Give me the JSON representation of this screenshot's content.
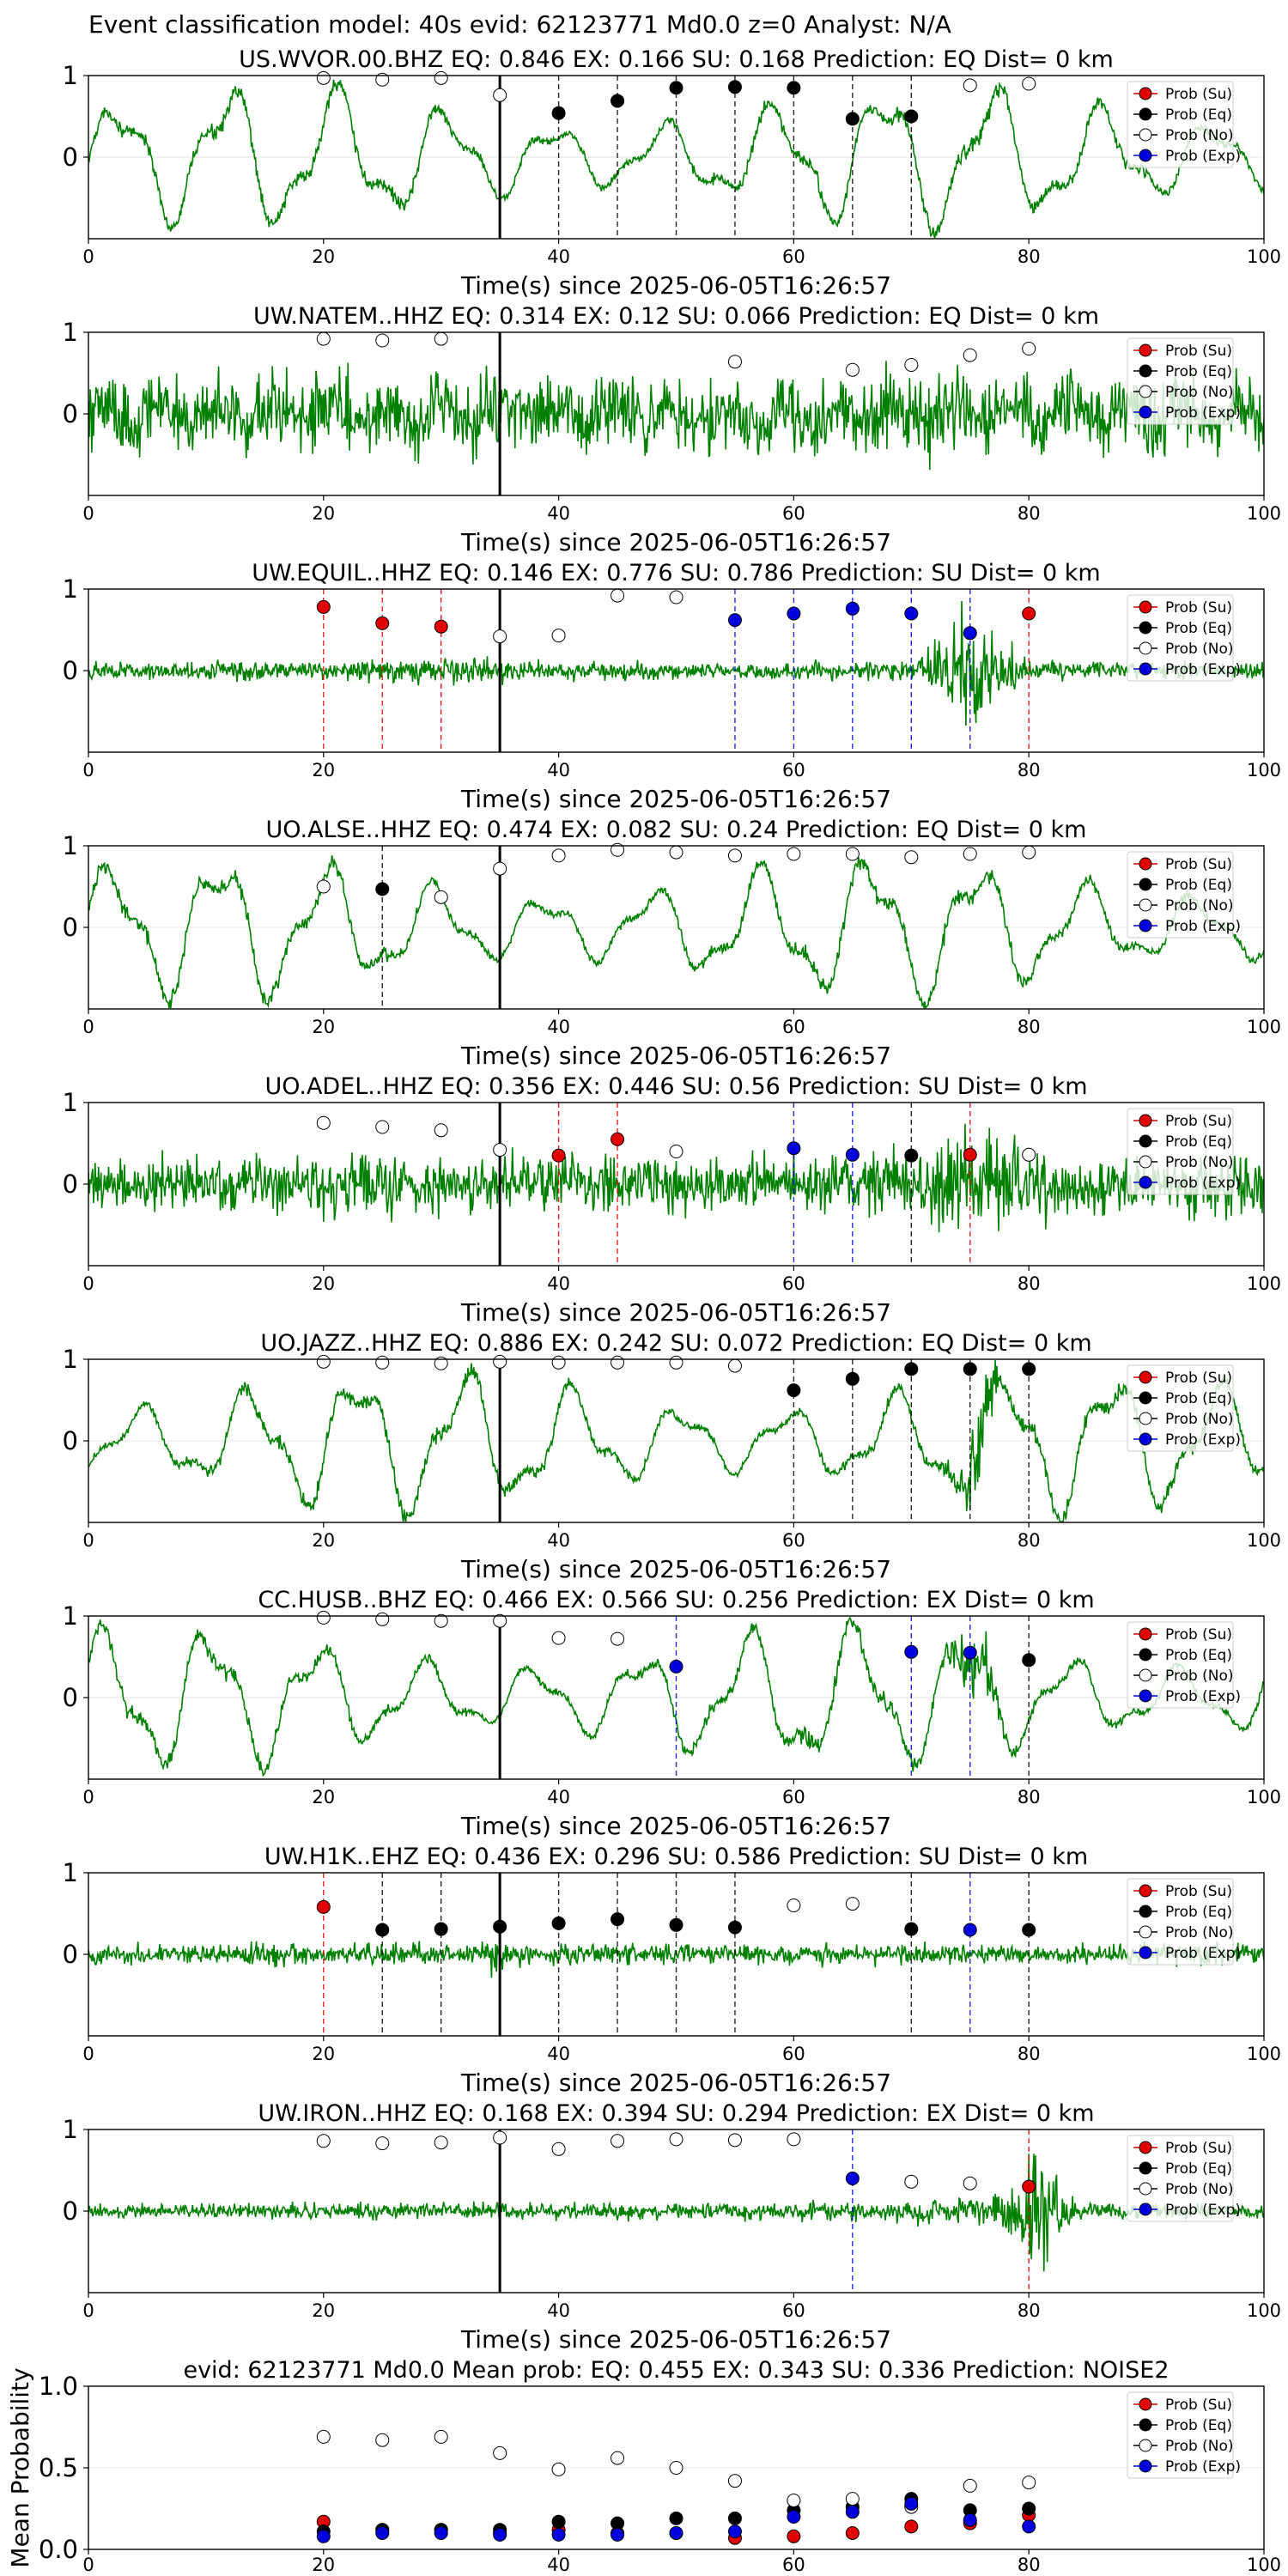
{
  "figure_title": "Event classification model: 40s evid: 62123771 Md0.0 z=0 Analyst: N/A",
  "colors": {
    "trace": "#008000",
    "su": "#e00000",
    "eq": "#000000",
    "no": "#ffffff",
    "exp": "#0000dd"
  },
  "chart_data": [
    {
      "type": "scatter",
      "title": "US.WVOR.00.BHZ   EQ: 0.846  EX: 0.166  SU: 0.168   Prediction: EQ    Dist= 0 km",
      "xlabel": "Time(s) since 2025-06-05T16:26:57",
      "xlim": [
        0,
        100
      ],
      "xticks": [
        "0",
        "20",
        "40",
        "60",
        "80",
        "100"
      ],
      "yticks": [
        "1",
        "0"
      ],
      "trace": "waveform",
      "trace_style": "smooth",
      "pick_time": 35,
      "points": [
        {
          "x": 20,
          "y": 0.97,
          "cls": "no"
        },
        {
          "x": 25,
          "y": 0.95,
          "cls": "no"
        },
        {
          "x": 30,
          "y": 0.97,
          "cls": "no"
        },
        {
          "x": 35,
          "y": 0.76,
          "cls": "no"
        },
        {
          "x": 40,
          "y": 0.54,
          "cls": "eq"
        },
        {
          "x": 45,
          "y": 0.69,
          "cls": "eq"
        },
        {
          "x": 50,
          "y": 0.85,
          "cls": "eq"
        },
        {
          "x": 55,
          "y": 0.86,
          "cls": "eq"
        },
        {
          "x": 60,
          "y": 0.85,
          "cls": "eq"
        },
        {
          "x": 65,
          "y": 0.47,
          "cls": "eq"
        },
        {
          "x": 70,
          "y": 0.5,
          "cls": "eq"
        },
        {
          "x": 75,
          "y": 0.88,
          "cls": "no"
        },
        {
          "x": 80,
          "y": 0.9,
          "cls": "no"
        }
      ],
      "vlines": [
        {
          "x": 40,
          "cls": "eq"
        },
        {
          "x": 45,
          "cls": "eq"
        },
        {
          "x": 50,
          "cls": "eq"
        },
        {
          "x": 55,
          "cls": "eq"
        },
        {
          "x": 60,
          "cls": "eq"
        },
        {
          "x": 65,
          "cls": "eq"
        },
        {
          "x": 70,
          "cls": "eq"
        }
      ],
      "legend": [
        "Prob (Su)",
        "Prob (Eq)",
        "Prob (No)",
        "Prob (Exp)"
      ]
    },
    {
      "type": "scatter",
      "title": "UW.NATEM..HHZ   EQ: 0.314  EX: 0.12  SU: 0.066   Prediction: EQ    Dist= 0 km",
      "xlabel": "Time(s) since 2025-06-05T16:26:57",
      "xlim": [
        0,
        100
      ],
      "xticks": [
        "0",
        "20",
        "40",
        "60",
        "80",
        "100"
      ],
      "yticks": [
        "1",
        "0"
      ],
      "trace": "waveform",
      "trace_style": "noise",
      "pick_time": 35,
      "points": [
        {
          "x": 20,
          "y": 0.92,
          "cls": "no"
        },
        {
          "x": 25,
          "y": 0.9,
          "cls": "no"
        },
        {
          "x": 30,
          "y": 0.92,
          "cls": "no"
        },
        {
          "x": 55,
          "y": 0.64,
          "cls": "no"
        },
        {
          "x": 65,
          "y": 0.54,
          "cls": "no"
        },
        {
          "x": 70,
          "y": 0.6,
          "cls": "no"
        },
        {
          "x": 75,
          "y": 0.72,
          "cls": "no"
        },
        {
          "x": 80,
          "y": 0.8,
          "cls": "no"
        }
      ],
      "vlines": [],
      "legend": [
        "Prob (Su)",
        "Prob (Eq)",
        "Prob (No)",
        "Prob (Exp)"
      ]
    },
    {
      "type": "scatter",
      "title": "UW.EQUIL..HHZ   EQ: 0.146  EX: 0.776  SU: 0.786   Prediction: SU    Dist= 0 km",
      "xlabel": "Time(s) since 2025-06-05T16:26:57",
      "xlim": [
        0,
        100
      ],
      "xticks": [
        "0",
        "20",
        "40",
        "60",
        "80",
        "100"
      ],
      "yticks": [
        "1",
        "0"
      ],
      "trace": "waveform",
      "trace_style": "burst75",
      "pick_time": 35,
      "points": [
        {
          "x": 20,
          "y": 0.78,
          "cls": "su"
        },
        {
          "x": 25,
          "y": 0.58,
          "cls": "su"
        },
        {
          "x": 30,
          "y": 0.54,
          "cls": "su"
        },
        {
          "x": 35,
          "y": 0.42,
          "cls": "no"
        },
        {
          "x": 40,
          "y": 0.43,
          "cls": "no"
        },
        {
          "x": 45,
          "y": 0.92,
          "cls": "no"
        },
        {
          "x": 50,
          "y": 0.9,
          "cls": "no"
        },
        {
          "x": 55,
          "y": 0.62,
          "cls": "exp"
        },
        {
          "x": 60,
          "y": 0.7,
          "cls": "exp"
        },
        {
          "x": 65,
          "y": 0.76,
          "cls": "exp"
        },
        {
          "x": 70,
          "y": 0.7,
          "cls": "exp"
        },
        {
          "x": 75,
          "y": 0.46,
          "cls": "exp"
        },
        {
          "x": 80,
          "y": 0.7,
          "cls": "su"
        }
      ],
      "vlines": [
        {
          "x": 20,
          "cls": "su"
        },
        {
          "x": 25,
          "cls": "su"
        },
        {
          "x": 30,
          "cls": "su"
        },
        {
          "x": 55,
          "cls": "exp"
        },
        {
          "x": 60,
          "cls": "exp"
        },
        {
          "x": 65,
          "cls": "exp"
        },
        {
          "x": 70,
          "cls": "exp"
        },
        {
          "x": 75,
          "cls": "exp"
        },
        {
          "x": 80,
          "cls": "su"
        }
      ],
      "legend": [
        "Prob (Su)",
        "Prob (Eq)",
        "Prob (No)",
        "Prob (Exp)"
      ]
    },
    {
      "type": "scatter",
      "title": "UO.ALSE..HHZ   EQ: 0.474  EX: 0.082  SU: 0.24   Prediction: EQ    Dist= 0 km",
      "xlabel": "Time(s) since 2025-06-05T16:26:57",
      "xlim": [
        0,
        100
      ],
      "xticks": [
        "0",
        "20",
        "40",
        "60",
        "80",
        "100"
      ],
      "yticks": [
        "1",
        "0"
      ],
      "trace": "waveform",
      "trace_style": "smooth",
      "pick_time": 35,
      "points": [
        {
          "x": 20,
          "y": 0.5,
          "cls": "no"
        },
        {
          "x": 25,
          "y": 0.47,
          "cls": "eq"
        },
        {
          "x": 30,
          "y": 0.37,
          "cls": "no"
        },
        {
          "x": 35,
          "y": 0.72,
          "cls": "no"
        },
        {
          "x": 40,
          "y": 0.88,
          "cls": "no"
        },
        {
          "x": 45,
          "y": 0.95,
          "cls": "no"
        },
        {
          "x": 50,
          "y": 0.92,
          "cls": "no"
        },
        {
          "x": 55,
          "y": 0.88,
          "cls": "no"
        },
        {
          "x": 60,
          "y": 0.9,
          "cls": "no"
        },
        {
          "x": 65,
          "y": 0.9,
          "cls": "no"
        },
        {
          "x": 70,
          "y": 0.86,
          "cls": "no"
        },
        {
          "x": 75,
          "y": 0.9,
          "cls": "no"
        },
        {
          "x": 80,
          "y": 0.92,
          "cls": "no"
        }
      ],
      "vlines": [
        {
          "x": 25,
          "cls": "eq"
        }
      ],
      "legend": [
        "Prob (Su)",
        "Prob (Eq)",
        "Prob (No)",
        "Prob (Exp)"
      ]
    },
    {
      "type": "scatter",
      "title": "UO.ADEL..HHZ   EQ: 0.356  EX: 0.446  SU: 0.56   Prediction: SU    Dist= 0 km",
      "xlabel": "Time(s) since 2025-06-05T16:26:57",
      "xlim": [
        0,
        100
      ],
      "xticks": [
        "0",
        "20",
        "40",
        "60",
        "80",
        "100"
      ],
      "yticks": [
        "1",
        "0"
      ],
      "trace": "waveform",
      "trace_style": "noiseburst75",
      "pick_time": 35,
      "points": [
        {
          "x": 20,
          "y": 0.75,
          "cls": "no"
        },
        {
          "x": 25,
          "y": 0.7,
          "cls": "no"
        },
        {
          "x": 30,
          "y": 0.66,
          "cls": "no"
        },
        {
          "x": 35,
          "y": 0.42,
          "cls": "no"
        },
        {
          "x": 40,
          "y": 0.35,
          "cls": "su"
        },
        {
          "x": 45,
          "y": 0.55,
          "cls": "su"
        },
        {
          "x": 50,
          "y": 0.4,
          "cls": "no"
        },
        {
          "x": 60,
          "y": 0.44,
          "cls": "exp"
        },
        {
          "x": 65,
          "y": 0.36,
          "cls": "exp"
        },
        {
          "x": 70,
          "y": 0.35,
          "cls": "eq"
        },
        {
          "x": 75,
          "y": 0.36,
          "cls": "su"
        },
        {
          "x": 80,
          "y": 0.36,
          "cls": "no"
        }
      ],
      "vlines": [
        {
          "x": 40,
          "cls": "su"
        },
        {
          "x": 45,
          "cls": "su"
        },
        {
          "x": 60,
          "cls": "exp"
        },
        {
          "x": 65,
          "cls": "exp"
        },
        {
          "x": 70,
          "cls": "eq"
        },
        {
          "x": 75,
          "cls": "su"
        }
      ],
      "legend": [
        "Prob (Su)",
        "Prob (Eq)",
        "Prob (No)",
        "Prob (Exp)"
      ]
    },
    {
      "type": "scatter",
      "title": "UO.JAZZ..HHZ   EQ: 0.886  EX: 0.242  SU: 0.072   Prediction: EQ    Dist= 0 km",
      "xlabel": "Time(s) since 2025-06-05T16:26:57",
      "xlim": [
        0,
        100
      ],
      "xticks": [
        "0",
        "20",
        "40",
        "60",
        "80",
        "100"
      ],
      "yticks": [
        "1",
        "0"
      ],
      "trace": "waveform",
      "trace_style": "smoothburst",
      "pick_time": 35,
      "points": [
        {
          "x": 20,
          "y": 0.97,
          "cls": "no"
        },
        {
          "x": 25,
          "y": 0.96,
          "cls": "no"
        },
        {
          "x": 30,
          "y": 0.95,
          "cls": "no"
        },
        {
          "x": 35,
          "y": 0.97,
          "cls": "no"
        },
        {
          "x": 40,
          "y": 0.96,
          "cls": "no"
        },
        {
          "x": 45,
          "y": 0.96,
          "cls": "no"
        },
        {
          "x": 50,
          "y": 0.96,
          "cls": "no"
        },
        {
          "x": 55,
          "y": 0.92,
          "cls": "no"
        },
        {
          "x": 60,
          "y": 0.62,
          "cls": "eq"
        },
        {
          "x": 65,
          "y": 0.76,
          "cls": "eq"
        },
        {
          "x": 70,
          "y": 0.88,
          "cls": "eq"
        },
        {
          "x": 75,
          "y": 0.88,
          "cls": "eq"
        },
        {
          "x": 80,
          "y": 0.88,
          "cls": "eq"
        }
      ],
      "vlines": [
        {
          "x": 60,
          "cls": "eq"
        },
        {
          "x": 65,
          "cls": "eq"
        },
        {
          "x": 70,
          "cls": "eq"
        },
        {
          "x": 75,
          "cls": "eq"
        },
        {
          "x": 80,
          "cls": "eq"
        }
      ],
      "legend": [
        "Prob (Su)",
        "Prob (Eq)",
        "Prob (No)",
        "Prob (Exp)"
      ]
    },
    {
      "type": "scatter",
      "title": "CC.HUSB..BHZ   EQ: 0.466  EX: 0.566  SU: 0.256   Prediction: EX    Dist= 0 km",
      "xlabel": "Time(s) since 2025-06-05T16:26:57",
      "xlim": [
        0,
        100
      ],
      "xticks": [
        "0",
        "20",
        "40",
        "60",
        "80",
        "100"
      ],
      "yticks": [
        "1",
        "0"
      ],
      "trace": "waveform",
      "trace_style": "smoothburst",
      "pick_time": 35,
      "points": [
        {
          "x": 20,
          "y": 0.98,
          "cls": "no"
        },
        {
          "x": 25,
          "y": 0.96,
          "cls": "no"
        },
        {
          "x": 30,
          "y": 0.94,
          "cls": "no"
        },
        {
          "x": 35,
          "y": 0.94,
          "cls": "no"
        },
        {
          "x": 40,
          "y": 0.73,
          "cls": "no"
        },
        {
          "x": 45,
          "y": 0.72,
          "cls": "no"
        },
        {
          "x": 50,
          "y": 0.38,
          "cls": "exp"
        },
        {
          "x": 70,
          "y": 0.56,
          "cls": "exp"
        },
        {
          "x": 75,
          "y": 0.55,
          "cls": "exp"
        },
        {
          "x": 80,
          "y": 0.46,
          "cls": "eq"
        }
      ],
      "vlines": [
        {
          "x": 50,
          "cls": "exp"
        },
        {
          "x": 70,
          "cls": "exp"
        },
        {
          "x": 75,
          "cls": "exp"
        },
        {
          "x": 80,
          "cls": "eq"
        }
      ],
      "legend": [
        "Prob (Su)",
        "Prob (Eq)",
        "Prob (No)",
        "Prob (Exp)"
      ]
    },
    {
      "type": "scatter",
      "title": "UW.H1K..EHZ   EQ: 0.436  EX: 0.296  SU: 0.586   Prediction: SU    Dist= 0 km",
      "xlabel": "Time(s) since 2025-06-05T16:26:57",
      "xlim": [
        0,
        100
      ],
      "xticks": [
        "0",
        "20",
        "40",
        "60",
        "80",
        "100"
      ],
      "yticks": [
        "1",
        "0"
      ],
      "trace": "waveform",
      "trace_style": "quiet",
      "pick_time": 35,
      "points": [
        {
          "x": 20,
          "y": 0.58,
          "cls": "su"
        },
        {
          "x": 25,
          "y": 0.3,
          "cls": "eq"
        },
        {
          "x": 30,
          "y": 0.31,
          "cls": "eq"
        },
        {
          "x": 35,
          "y": 0.34,
          "cls": "eq"
        },
        {
          "x": 40,
          "y": 0.38,
          "cls": "eq"
        },
        {
          "x": 45,
          "y": 0.43,
          "cls": "eq"
        },
        {
          "x": 50,
          "y": 0.36,
          "cls": "eq"
        },
        {
          "x": 55,
          "y": 0.33,
          "cls": "eq"
        },
        {
          "x": 60,
          "y": 0.6,
          "cls": "no"
        },
        {
          "x": 65,
          "y": 0.62,
          "cls": "no"
        },
        {
          "x": 70,
          "y": 0.31,
          "cls": "eq"
        },
        {
          "x": 75,
          "y": 0.3,
          "cls": "exp"
        },
        {
          "x": 80,
          "y": 0.3,
          "cls": "eq"
        }
      ],
      "vlines": [
        {
          "x": 20,
          "cls": "su"
        },
        {
          "x": 25,
          "cls": "eq"
        },
        {
          "x": 30,
          "cls": "eq"
        },
        {
          "x": 40,
          "cls": "eq"
        },
        {
          "x": 45,
          "cls": "eq"
        },
        {
          "x": 50,
          "cls": "eq"
        },
        {
          "x": 55,
          "cls": "eq"
        },
        {
          "x": 70,
          "cls": "eq"
        },
        {
          "x": 75,
          "cls": "exp"
        },
        {
          "x": 80,
          "cls": "eq"
        }
      ],
      "legend": [
        "Prob (Su)",
        "Prob (Eq)",
        "Prob (No)",
        "Prob (Exp)"
      ]
    },
    {
      "type": "scatter",
      "title": "UW.IRON..HHZ   EQ: 0.168  EX: 0.394  SU: 0.294   Prediction: EX    Dist= 0 km",
      "xlabel": "Time(s) since 2025-06-05T16:26:57",
      "xlim": [
        0,
        100
      ],
      "xticks": [
        "0",
        "20",
        "40",
        "60",
        "80",
        "100"
      ],
      "yticks": [
        "1",
        "0"
      ],
      "trace": "waveform",
      "trace_style": "burst80",
      "pick_time": 35,
      "points": [
        {
          "x": 20,
          "y": 0.86,
          "cls": "no"
        },
        {
          "x": 25,
          "y": 0.83,
          "cls": "no"
        },
        {
          "x": 30,
          "y": 0.84,
          "cls": "no"
        },
        {
          "x": 35,
          "y": 0.9,
          "cls": "no"
        },
        {
          "x": 40,
          "y": 0.76,
          "cls": "no"
        },
        {
          "x": 45,
          "y": 0.86,
          "cls": "no"
        },
        {
          "x": 50,
          "y": 0.88,
          "cls": "no"
        },
        {
          "x": 55,
          "y": 0.87,
          "cls": "no"
        },
        {
          "x": 60,
          "y": 0.88,
          "cls": "no"
        },
        {
          "x": 65,
          "y": 0.4,
          "cls": "exp"
        },
        {
          "x": 70,
          "y": 0.36,
          "cls": "no"
        },
        {
          "x": 75,
          "y": 0.34,
          "cls": "no"
        },
        {
          "x": 80,
          "y": 0.3,
          "cls": "su"
        }
      ],
      "vlines": [
        {
          "x": 65,
          "cls": "exp"
        },
        {
          "x": 80,
          "cls": "su"
        }
      ],
      "legend": [
        "Prob (Su)",
        "Prob (Eq)",
        "Prob (No)",
        "Prob (Exp)"
      ]
    },
    {
      "type": "scatter",
      "title": "evid: 62123771  Md0.0   Mean prob:   EQ: 0.455  EX: 0.343  SU: 0.336   Prediction: NOISE2",
      "ylabel": "Mean Probability",
      "xlim": [
        0,
        100
      ],
      "ylim": [
        0,
        1
      ],
      "xticks": [
        "0",
        "20",
        "40",
        "60",
        "80",
        "100"
      ],
      "yticks": [
        "1.0",
        "0.5",
        "0.0"
      ],
      "x": [
        20,
        25,
        30,
        35,
        40,
        45,
        50,
        55,
        60,
        65,
        70,
        75,
        80
      ],
      "series": [
        {
          "name": "Prob (Su)",
          "cls": "su",
          "values": [
            0.17,
            0.12,
            0.12,
            0.1,
            0.12,
            0.1,
            0.1,
            0.07,
            0.08,
            0.1,
            0.14,
            0.16,
            0.21
          ]
        },
        {
          "name": "Prob (Eq)",
          "cls": "eq",
          "values": [
            0.11,
            0.12,
            0.12,
            0.12,
            0.17,
            0.16,
            0.19,
            0.19,
            0.24,
            0.26,
            0.31,
            0.24,
            0.25
          ]
        },
        {
          "name": "Prob (No)",
          "cls": "no",
          "values": [
            0.69,
            0.67,
            0.69,
            0.59,
            0.49,
            0.56,
            0.5,
            0.42,
            0.3,
            0.31,
            0.26,
            0.39,
            0.41
          ]
        },
        {
          "name": "Prob (Exp)",
          "cls": "exp",
          "values": [
            0.08,
            0.1,
            0.1,
            0.09,
            0.09,
            0.09,
            0.1,
            0.11,
            0.2,
            0.23,
            0.28,
            0.18,
            0.14
          ]
        }
      ],
      "legend": [
        "Prob (Su)",
        "Prob (Eq)",
        "Prob (No)",
        "Prob (Exp)"
      ]
    }
  ]
}
